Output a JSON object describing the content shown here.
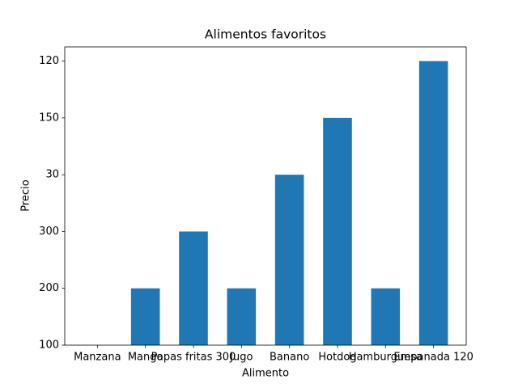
{
  "chart_data": {
    "type": "bar",
    "title": "Alimentos favoritos",
    "x_label": "Alimento",
    "y_label": "Precio",
    "categories": [
      "Manzana",
      "Mango",
      "Papas fritas 300",
      "Jugo",
      "Banano",
      "Hotdog",
      "Hamburguesa",
      "Empanada 120"
    ],
    "values": [
      0,
      1,
      2,
      1,
      3,
      4,
      1,
      5
    ],
    "color": "#1f77b4",
    "ylim": [
      0,
      5.25
    ],
    "yticks": [
      {
        "value": 0,
        "label": "100"
      },
      {
        "value": 1,
        "label": "200"
      },
      {
        "value": 2,
        "label": "300"
      },
      {
        "value": 3,
        "label": "30"
      },
      {
        "value": 4,
        "label": "150"
      },
      {
        "value": 5,
        "label": "120"
      }
    ],
    "grid": false
  }
}
